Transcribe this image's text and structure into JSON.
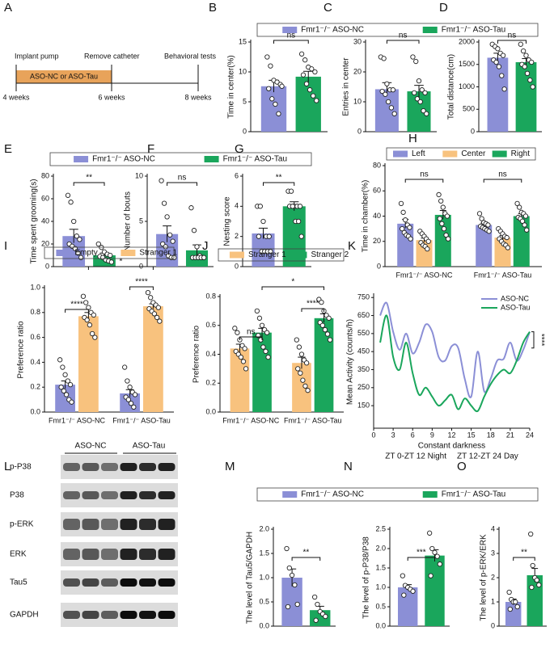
{
  "timeline": {
    "panel": "A",
    "events": [
      "Implant pump",
      "Remove catheter",
      "Behavioral tests"
    ],
    "treatment": "ASO-NC or ASO-Tau",
    "weeks": [
      "4 weeks",
      "6 weeks",
      "8 weeks"
    ]
  },
  "blot": {
    "panel": "L",
    "groups": [
      "ASO-NC",
      "ASO-Tau"
    ],
    "rows": [
      "p-P38",
      "P38",
      "p-ERK",
      "ERK",
      "Tau5",
      "GAPDH"
    ]
  },
  "chart_data": [
    {
      "panel": "B",
      "type": "bar",
      "ylabel": "Time in center(%)",
      "ylim": [
        0,
        15
      ],
      "yticks": [
        0,
        5,
        10,
        15
      ],
      "series": [
        {
          "name": "Fmr1⁻/⁻ ASO-NC",
          "color": "#8b8fd6",
          "values": [
            7.6
          ],
          "errors": [
            1.0
          ],
          "points": [
            [
              12.5,
              11,
              8.6,
              8.3,
              7.9,
              7.2,
              5.5,
              4.6,
              3.0,
              7.6
            ]
          ]
        },
        {
          "name": "Fmr1⁻/⁻ ASO-Tau",
          "color": "#1aa65c",
          "values": [
            9.2
          ],
          "errors": [
            0.9
          ],
          "points": [
            [
              13,
              12,
              10.8,
              10.5,
              10,
              9.5,
              8,
              7,
              6,
              5.2
            ]
          ]
        }
      ],
      "significance": "ns"
    },
    {
      "panel": "C",
      "type": "bar",
      "ylabel": "Entries in center",
      "ylim": [
        0,
        30
      ],
      "yticks": [
        0,
        10,
        20,
        30
      ],
      "series": [
        {
          "color": "#8b8fd6",
          "values": [
            14.2
          ],
          "errors": [
            2.2
          ],
          "points": [
            [
              25,
              24.5,
              16,
              14,
              14,
              13.5,
              12.5,
              10,
              8,
              6
            ]
          ]
        },
        {
          "color": "#1aa65c",
          "values": [
            13.5
          ],
          "errors": [
            2.0
          ],
          "points": [
            [
              25,
              23.5,
              17,
              14,
              13,
              13,
              11,
              10,
              7,
              6
            ]
          ]
        }
      ],
      "significance": "ns"
    },
    {
      "panel": "D",
      "type": "bar",
      "ylabel": "Total distance(cm)",
      "ylim": [
        0,
        2000
      ],
      "yticks": [
        0,
        500,
        1000,
        1500,
        2000
      ],
      "series": [
        {
          "color": "#8b8fd6",
          "values": [
            1650
          ],
          "errors": [
            100
          ],
          "points": [
            [
              1950,
              1900,
              1850,
              1750,
              1700,
              1600,
              1550,
              1450,
              1250,
              950
            ]
          ]
        },
        {
          "color": "#1aa65c",
          "values": [
            1550
          ],
          "errors": [
            80
          ],
          "points": [
            [
              1950,
              1800,
              1700,
              1600,
              1550,
              1500,
              1450,
              1300,
              1150,
              1000
            ]
          ]
        }
      ],
      "significance": "ns"
    },
    {
      "panel": "E",
      "type": "bar",
      "ylabel": "Time spent grooming(s)",
      "ylim": [
        0,
        80
      ],
      "yticks": [
        0,
        20,
        40,
        60,
        80
      ],
      "series": [
        {
          "name": "Fmr1⁻/⁻ ASO-NC",
          "color": "#8b8fd6",
          "values": [
            27
          ],
          "errors": [
            6
          ],
          "points": [
            [
              63,
              57,
              40,
              27,
              24,
              20,
              18,
              16,
              12,
              8
            ]
          ]
        },
        {
          "name": "Fmr1⁻/⁻ ASO-Tau",
          "color": "#1aa65c",
          "values": [
            10
          ],
          "errors": [
            2
          ],
          "points": [
            [
              20,
              17,
              13,
              11,
              10,
              9,
              8,
              6,
              5,
              4
            ]
          ]
        }
      ],
      "significance": "**"
    },
    {
      "panel": "F",
      "type": "bar",
      "ylabel": "Number of bouts",
      "ylim": [
        0,
        10
      ],
      "yticks": [
        0,
        5,
        10
      ],
      "series": [
        {
          "color": "#8b8fd6",
          "values": [
            3.6
          ],
          "errors": [
            0.9
          ],
          "points": [
            [
              9.5,
              7,
              5.5,
              3.5,
              2.8,
              2.5,
              2.2,
              1.2,
              1,
              1
            ]
          ]
        },
        {
          "color": "#1aa65c",
          "values": [
            1.8
          ],
          "errors": [
            0.6
          ],
          "points": [
            [
              6.5,
              4,
              2.2,
              1.2,
              1,
              1,
              1,
              1,
              1,
              1
            ]
          ]
        }
      ],
      "significance": "ns"
    },
    {
      "panel": "G",
      "type": "bar",
      "ylabel": "Nesting score",
      "ylim": [
        0,
        6
      ],
      "yticks": [
        0,
        2,
        4,
        6
      ],
      "series": [
        {
          "color": "#8b8fd6",
          "values": [
            2.2
          ],
          "errors": [
            0.35
          ],
          "points": [
            [
              4,
              4,
              3,
              2,
              2,
              2,
              1,
              1,
              1,
              1
            ]
          ]
        },
        {
          "color": "#1aa65c",
          "values": [
            4.0
          ],
          "errors": [
            0.3
          ],
          "points": [
            [
              5,
              5,
              4,
              4,
              4,
              4,
              4,
              3,
              3,
              2
            ]
          ]
        }
      ],
      "significance": "**"
    },
    {
      "panel": "H",
      "type": "bar",
      "ylabel": "Time in chamber(%)",
      "ylim": [
        0,
        80
      ],
      "yticks": [
        0,
        20,
        40,
        60,
        80
      ],
      "categories": [
        "Fmr1⁻/⁻ ASO-NC",
        "Fmr1⁻/⁻ ASO-Tau"
      ],
      "series": [
        {
          "name": "Left",
          "color": "#8b8fd6",
          "values": [
            34,
            33
          ],
          "errors": [
            3.5,
            1.5
          ],
          "points": [
            [
              50,
              43,
              37,
              33,
              31,
              30,
              27,
              25,
              24,
              22
            ],
            [
              42,
              38,
              35,
              34,
              33,
              32,
              31,
              30,
              29,
              28
            ]
          ]
        },
        {
          "name": "Center",
          "color": "#f8c27e",
          "values": [
            21,
            23
          ],
          "errors": [
            1.6,
            1.5
          ],
          "points": [
            [
              28,
              26,
              24,
              22,
              20,
              19,
              17,
              16,
              14
            ],
            [
              30,
              28,
              26,
              24,
              23,
              22,
              20,
              18,
              17,
              15
            ]
          ]
        },
        {
          "name": "Right",
          "color": "#1aa65c",
          "values": [
            41,
            40
          ],
          "errors": [
            3.5,
            2
          ],
          "points": [
            [
              57,
              52,
              47,
              42,
              40,
              38,
              34,
              30,
              25,
              22
            ],
            [
              50,
              47,
              43,
              42,
              40,
              39,
              38,
              36,
              33,
              29
            ]
          ]
        }
      ],
      "group_significance": [
        "ns",
        "ns"
      ]
    },
    {
      "panel": "I",
      "type": "bar",
      "ylabel": "Preference ratio",
      "ylim": [
        0,
        1
      ],
      "yticks": [
        {
          "value": 0,
          "label": "0.0"
        },
        0.2,
        0.4,
        0.6,
        0.8,
        {
          "value": 1,
          "label": "1.0"
        }
      ],
      "categories": [
        "Fmr1⁻/⁻ ASO-NC",
        "Fmr1⁻/⁻ ASO-Tau"
      ],
      "series": [
        {
          "name": "Empty",
          "color": "#8b8fd6",
          "values": [
            0.22,
            0.15
          ],
          "errors": [
            0.03,
            0.03
          ],
          "points": [
            [
              0.42,
              0.36,
              0.3,
              0.25,
              0.22,
              0.2,
              0.17,
              0.14,
              0.1,
              0.08
            ],
            [
              0.36,
              0.25,
              0.2,
              0.16,
              0.14,
              0.12,
              0.1,
              0.07,
              0.04
            ]
          ]
        },
        {
          "name": "Stranger 1",
          "color": "#f8c27e",
          "values": [
            0.77,
            0.85
          ],
          "errors": [
            0.03,
            0.02
          ],
          "points": [
            [
              0.93,
              0.88,
              0.84,
              0.8,
              0.78,
              0.76,
              0.74,
              0.7,
              0.63,
              0.6
            ],
            [
              0.96,
              0.92,
              0.88,
              0.86,
              0.84,
              0.83,
              0.81,
              0.79,
              0.76,
              0.73
            ]
          ]
        }
      ],
      "group_significance": [
        "****",
        "****"
      ],
      "between_significance": "*"
    },
    {
      "panel": "J",
      "type": "bar",
      "ylabel": "Preference ratio",
      "ylim": [
        0,
        0.8
      ],
      "yticks": [
        {
          "value": 0,
          "label": "0.0"
        },
        0.2,
        0.4,
        0.6,
        0.8
      ],
      "categories": [
        "Fmr1⁻/⁻ ASO-NC",
        "Fmr1⁻/⁻ ASO-Tau"
      ],
      "series": [
        {
          "name": "Stranger 1",
          "color": "#f8c27e",
          "values": [
            0.44,
            0.34
          ],
          "errors": [
            0.03,
            0.04
          ],
          "points": [
            [
              0.58,
              0.55,
              0.5,
              0.46,
              0.44,
              0.42,
              0.4,
              0.38,
              0.35,
              0.3
            ],
            [
              0.5,
              0.45,
              0.4,
              0.36,
              0.34,
              0.3,
              0.27,
              0.22,
              0.18,
              0.15
            ]
          ]
        },
        {
          "name": "Stranger 2",
          "color": "#1aa65c",
          "values": [
            0.55,
            0.65
          ],
          "errors": [
            0.03,
            0.03
          ],
          "points": [
            [
              0.7,
              0.65,
              0.6,
              0.57,
              0.55,
              0.53,
              0.5,
              0.45,
              0.42,
              0.38
            ],
            [
              0.78,
              0.76,
              0.7,
              0.67,
              0.65,
              0.62,
              0.6,
              0.57,
              0.54,
              0.5
            ]
          ]
        }
      ],
      "group_significance": [
        "ns",
        "****"
      ],
      "between_significance": "*"
    },
    {
      "panel": "K",
      "type": "line",
      "ylabel": "Mean Activity (counts/h)",
      "xlabel": "Constant darkness",
      "xsublabels": [
        "ZT 0-ZT 12 Night",
        "ZT 12-ZT 24 Day"
      ],
      "xlim": [
        0,
        24
      ],
      "xticks": [
        0,
        3,
        6,
        9,
        12,
        15,
        18,
        21,
        24
      ],
      "ylim": [
        25,
        760
      ],
      "yticks": [
        150,
        250,
        350,
        450,
        550,
        650,
        750
      ],
      "x": [
        1,
        2,
        3,
        4,
        5,
        6,
        7,
        8,
        9,
        10,
        11,
        12,
        13,
        14,
        15,
        16,
        17,
        18,
        19,
        20,
        21,
        22,
        23,
        24
      ],
      "series": [
        {
          "name": "ASO-NC",
          "color": "#8b8fd6",
          "values": [
            650,
            720,
            560,
            460,
            550,
            440,
            500,
            600,
            560,
            420,
            400,
            480,
            470,
            300,
            200,
            450,
            230,
            300,
            400,
            410,
            500,
            400,
            460,
            560
          ]
        },
        {
          "name": "ASO-Tau",
          "color": "#1aa65c",
          "values": [
            500,
            650,
            420,
            350,
            500,
            330,
            210,
            250,
            200,
            150,
            180,
            210,
            130,
            190,
            150,
            120,
            200,
            270,
            320,
            350,
            330,
            400,
            500,
            560
          ]
        }
      ],
      "significance": "****"
    },
    {
      "panel": "M",
      "type": "bar",
      "ylabel": "The level of Tau5/GAPDH",
      "ylim": [
        0,
        2
      ],
      "yticks": [
        {
          "value": 0,
          "label": "0.0"
        },
        0.5,
        {
          "value": 1,
          "label": "1.0"
        },
        1.5,
        {
          "value": 2,
          "label": "2.0"
        }
      ],
      "series": [
        {
          "name": "Fmr1⁻/⁻ ASO-NC",
          "color": "#8b8fd6",
          "values": [
            1.0
          ],
          "errors": [
            0.18
          ],
          "points": [
            [
              1.6,
              1.2,
              1.05,
              0.85,
              0.45,
              0.4
            ]
          ]
        },
        {
          "name": "Fmr1⁻/⁻ ASO-Tau",
          "color": "#1aa65c",
          "values": [
            0.33
          ],
          "errors": [
            0.08
          ],
          "points": [
            [
              0.6,
              0.45,
              0.3,
              0.25,
              0.2,
              0.12
            ]
          ]
        }
      ],
      "significance": "**"
    },
    {
      "panel": "N",
      "type": "bar",
      "ylabel": "The level of p-P38/P38",
      "ylim": [
        0,
        2.5
      ],
      "yticks": [
        {
          "value": 0,
          "label": "0.0"
        },
        0.5,
        {
          "value": 1,
          "label": "1.0"
        },
        1.5,
        {
          "value": 2,
          "label": "2.0"
        },
        2.5
      ],
      "series": [
        {
          "color": "#8b8fd6",
          "values": [
            1.0
          ],
          "errors": [
            0.07
          ],
          "points": [
            [
              1.3,
              1.05,
              1.0,
              0.95,
              0.9,
              0.8
            ]
          ]
        },
        {
          "color": "#1aa65c",
          "values": [
            1.82
          ],
          "errors": [
            0.15
          ],
          "points": [
            [
              2.4,
              2.0,
              1.9,
              1.8,
              1.6,
              1.3
            ]
          ]
        }
      ],
      "significance": "***"
    },
    {
      "panel": "O",
      "type": "bar",
      "ylabel": "The level of p-ERK/ERK",
      "ylim": [
        0,
        4
      ],
      "yticks": [
        0,
        1,
        2,
        3,
        4
      ],
      "series": [
        {
          "color": "#8b8fd6",
          "values": [
            1.0
          ],
          "errors": [
            0.12
          ],
          "points": [
            [
              1.4,
              1.1,
              1.0,
              1.0,
              0.8,
              0.7
            ]
          ]
        },
        {
          "color": "#1aa65c",
          "values": [
            2.1
          ],
          "errors": [
            0.28
          ],
          "points": [
            [
              3.8,
              2.5,
              2.0,
              1.9,
              1.7,
              1.6
            ]
          ]
        }
      ],
      "significance": "**"
    }
  ]
}
